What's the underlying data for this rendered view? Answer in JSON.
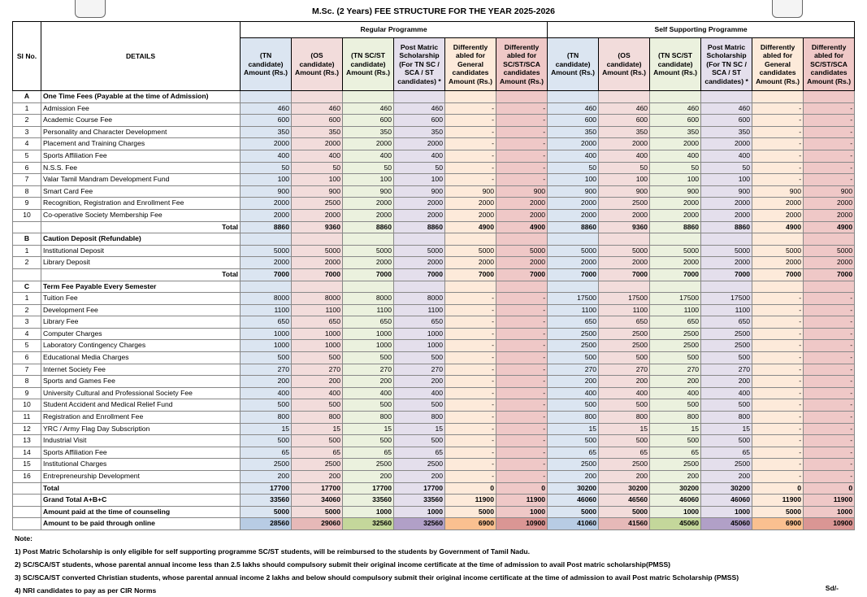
{
  "header": {
    "title": "M.Sc. (2 Years) FEE STRUCTURE FOR THE YEAR 2025-2026"
  },
  "table": {
    "sl_header": "Sl No.",
    "details_header": "DETAILS",
    "groups": [
      "Regular Programme",
      "Self Supporting Programme"
    ],
    "columns": [
      "(TN candidate) Amount (Rs.)",
      "(OS candidate) Amount (Rs.)",
      "(TN SC/ST candidate) Amount (Rs.)",
      "Post Matric Scholarship (For TN SC / SCA / ST candidates) *",
      "Differently abled for General candidates Amount (Rs.)",
      "Differently abled for SC/ST/SCA candidates Amount (Rs.)",
      "(TN candidate) Amount (Rs.)",
      "(OS candidate) Amount (Rs.)",
      "(TN SC/ST candidate) Amount (Rs.)",
      "Post Matric Scholarship (For TN SC / SCA / ST candidates) *",
      "Differently abled for General candidates Amount (Rs.)",
      "Differently abled for SC/ST/SCA candidates Amount (Rs.)"
    ],
    "sections": [
      {
        "label": "A",
        "title": "One Time Fees (Payable at the time of Admission)",
        "rows": [
          {
            "sl": "1",
            "detail": "Admission Fee",
            "values": [
              460,
              460,
              460,
              460,
              "-",
              "-",
              460,
              460,
              460,
              460,
              "-",
              "-"
            ]
          },
          {
            "sl": "2",
            "detail": "Academic Course Fee",
            "values": [
              600,
              600,
              600,
              600,
              "-",
              "-",
              600,
              600,
              600,
              600,
              "-",
              "-"
            ]
          },
          {
            "sl": "3",
            "detail": "Personality and Character Development",
            "values": [
              350,
              350,
              350,
              350,
              "-",
              "-",
              350,
              350,
              350,
              350,
              "-",
              "-"
            ]
          },
          {
            "sl": "4",
            "detail": "Placement and Training Charges",
            "values": [
              2000,
              2000,
              2000,
              2000,
              "-",
              "-",
              2000,
              2000,
              2000,
              2000,
              "-",
              "-"
            ]
          },
          {
            "sl": "5",
            "detail": "Sports Affiliation Fee",
            "values": [
              400,
              400,
              400,
              400,
              "-",
              "-",
              400,
              400,
              400,
              400,
              "-",
              "-"
            ]
          },
          {
            "sl": "6",
            "detail": "N.S.S. Fee",
            "values": [
              50,
              50,
              50,
              50,
              "-",
              "-",
              50,
              50,
              50,
              50,
              "-",
              "-"
            ]
          },
          {
            "sl": "7",
            "detail": "Valar Tamil Mandram  Development Fund",
            "values": [
              100,
              100,
              100,
              100,
              "-",
              "-",
              100,
              100,
              100,
              100,
              "-",
              "-"
            ]
          },
          {
            "sl": "8",
            "detail": "Smart Card Fee",
            "values": [
              900,
              900,
              900,
              900,
              900,
              900,
              900,
              900,
              900,
              900,
              900,
              900
            ]
          },
          {
            "sl": "9",
            "detail": "Recognition, Registration and Enrollment Fee",
            "values": [
              2000,
              2500,
              2000,
              2000,
              2000,
              2000,
              2000,
              2500,
              2000,
              2000,
              2000,
              2000
            ]
          },
          {
            "sl": "10",
            "detail": "Co-operative Society Membership Fee",
            "values": [
              2000,
              2000,
              2000,
              2000,
              2000,
              2000,
              2000,
              2000,
              2000,
              2000,
              2000,
              2000
            ]
          }
        ],
        "total": {
          "label": "Total",
          "values": [
            8860,
            9360,
            8860,
            8860,
            4900,
            4900,
            8860,
            9360,
            8860,
            8860,
            4900,
            4900
          ]
        }
      },
      {
        "label": "B",
        "title": "Caution Deposit (Refundable)",
        "rows": [
          {
            "sl": "1",
            "detail": "Institutional Deposit",
            "values": [
              5000,
              5000,
              5000,
              5000,
              5000,
              5000,
              5000,
              5000,
              5000,
              5000,
              5000,
              5000
            ]
          },
          {
            "sl": "2",
            "detail": "Library Deposit",
            "values": [
              2000,
              2000,
              2000,
              2000,
              2000,
              2000,
              2000,
              2000,
              2000,
              2000,
              2000,
              2000
            ]
          }
        ],
        "total": {
          "label": "Total",
          "values": [
            7000,
            7000,
            7000,
            7000,
            7000,
            7000,
            7000,
            7000,
            7000,
            7000,
            7000,
            7000
          ]
        }
      },
      {
        "label": "C",
        "title": "Term Fee Payable Every Semester",
        "rows": [
          {
            "sl": "1",
            "detail": "Tuition Fee",
            "values": [
              8000,
              8000,
              8000,
              8000,
              "-",
              "-",
              17500,
              17500,
              17500,
              17500,
              "-",
              "-"
            ]
          },
          {
            "sl": "2",
            "detail": "Development Fee",
            "values": [
              1100,
              1100,
              1100,
              1100,
              "-",
              "-",
              1100,
              1100,
              1100,
              1100,
              "-",
              "-"
            ]
          },
          {
            "sl": "3",
            "detail": "Library Fee",
            "values": [
              650,
              650,
              650,
              650,
              "-",
              "-",
              650,
              650,
              650,
              650,
              "-",
              "-"
            ]
          },
          {
            "sl": "4",
            "detail": "Computer Charges",
            "values": [
              1000,
              1000,
              1000,
              1000,
              "-",
              "-",
              2500,
              2500,
              2500,
              2500,
              "-",
              "-"
            ]
          },
          {
            "sl": "5",
            "detail": "Laboratory Contingency Charges",
            "values": [
              1000,
              1000,
              1000,
              1000,
              "-",
              "-",
              2500,
              2500,
              2500,
              2500,
              "-",
              "-"
            ]
          },
          {
            "sl": "6",
            "detail": "Educational Media Charges",
            "values": [
              500,
              500,
              500,
              500,
              "-",
              "-",
              500,
              500,
              500,
              500,
              "-",
              "-"
            ]
          },
          {
            "sl": "7",
            "detail": "Internet Society Fee",
            "values": [
              270,
              270,
              270,
              270,
              "-",
              "-",
              270,
              270,
              270,
              270,
              "-",
              "-"
            ]
          },
          {
            "sl": "8",
            "detail": "Sports and Games Fee",
            "values": [
              200,
              200,
              200,
              200,
              "-",
              "-",
              200,
              200,
              200,
              200,
              "-",
              "-"
            ]
          },
          {
            "sl": "9",
            "detail": "University Cultural and Professional Society Fee",
            "values": [
              400,
              400,
              400,
              400,
              "-",
              "-",
              400,
              400,
              400,
              400,
              "-",
              "-"
            ]
          },
          {
            "sl": "10",
            "detail": "Student Accident and Medical Relief Fund",
            "values": [
              500,
              500,
              500,
              500,
              "-",
              "-",
              500,
              500,
              500,
              500,
              "-",
              "-"
            ]
          },
          {
            "sl": "11",
            "detail": "Registration and Enrollment Fee",
            "values": [
              800,
              800,
              800,
              800,
              "-",
              "-",
              800,
              800,
              800,
              800,
              "-",
              "-"
            ]
          },
          {
            "sl": "12",
            "detail": "YRC / Army Flag Day Subscription",
            "values": [
              15,
              15,
              15,
              15,
              "-",
              "-",
              15,
              15,
              15,
              15,
              "-",
              "-"
            ]
          },
          {
            "sl": "13",
            "detail": "Industrial Visit",
            "values": [
              500,
              500,
              500,
              500,
              "-",
              "-",
              500,
              500,
              500,
              500,
              "-",
              "-"
            ]
          },
          {
            "sl": "14",
            "detail": "Sports Affiliation Fee",
            "values": [
              65,
              65,
              65,
              65,
              "-",
              "-",
              65,
              65,
              65,
              65,
              "-",
              "-"
            ]
          },
          {
            "sl": "15",
            "detail": "Institutional Charges",
            "values": [
              2500,
              2500,
              2500,
              2500,
              "-",
              "-",
              2500,
              2500,
              2500,
              2500,
              "-",
              "-"
            ]
          },
          {
            "sl": "16",
            "detail": "Entrepreneurship Development",
            "values": [
              200,
              200,
              200,
              200,
              "-",
              "-",
              200,
              200,
              200,
              200,
              "-",
              "-"
            ]
          }
        ],
        "total": {
          "label": "Total",
          "values": [
            17700,
            17700,
            17700,
            17700,
            0,
            0,
            30200,
            30200,
            30200,
            30200,
            0,
            0
          ]
        }
      }
    ],
    "summary": [
      {
        "label": "Grand Total  A+B+C",
        "values": [
          33560,
          34060,
          33560,
          33560,
          11900,
          11900,
          46060,
          46560,
          46060,
          46060,
          11900,
          11900
        ]
      },
      {
        "label": "Amount paid at the time of counseling",
        "values": [
          5000,
          5000,
          1000,
          1000,
          5000,
          1000,
          5000,
          5000,
          1000,
          1000,
          5000,
          1000
        ]
      },
      {
        "label": "Amount to be paid through online",
        "values": [
          28560,
          29060,
          32560,
          32560,
          6900,
          10900,
          41060,
          41560,
          45060,
          45060,
          6900,
          10900
        ]
      }
    ]
  },
  "notes": {
    "label": "Note:",
    "items": [
      "1)  Post Matric Scholarship is only eligible for self supporting programme SC/ST students, will be reimbursed to the students by Government of Tamil Nadu.",
      "2)  SC/SCA/ST students, whose parental annual income less than 2.5 lakhs should compulsory submit their original income certificate at the time of admission to avail Post matric scholarship(PMSS)",
      "3)  SC/SCA/ST converted Christian students, whose parental annual income 2 lakhs and below should compulsory submit their original income certificate at the time of admission to avail Post matric Scholarship (PMSS)",
      "4)  NRI candidates to pay as per CIR Norms"
    ],
    "signature": "Sd/-"
  }
}
